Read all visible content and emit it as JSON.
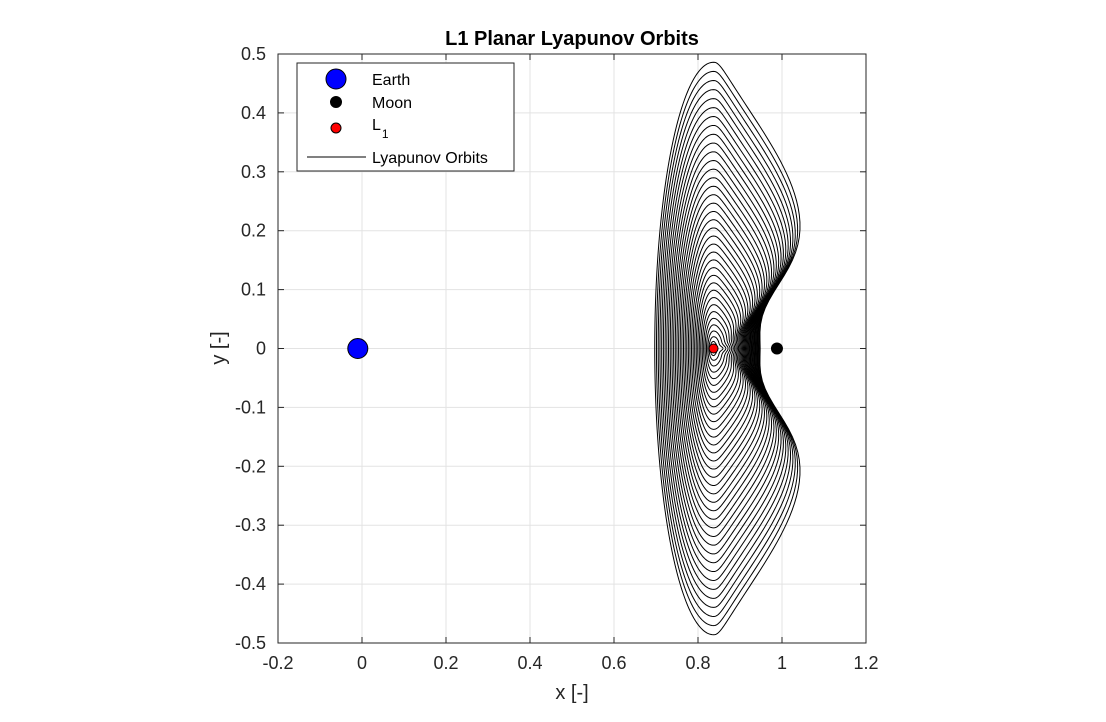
{
  "chart_data": {
    "type": "line",
    "title": "L1 Planar Lyapunov Orbits",
    "xlabel": "x [-]",
    "ylabel": "y [-]",
    "xlim": [
      -0.2,
      1.2
    ],
    "ylim": [
      -0.5,
      0.5
    ],
    "xticks": [
      -0.2,
      0,
      0.2,
      0.4,
      0.6,
      0.8,
      1,
      1.2
    ],
    "xtick_labels": [
      "-0.2",
      "0",
      "0.2",
      "0.4",
      "0.6",
      "0.8",
      "1",
      "1.2"
    ],
    "yticks": [
      -0.5,
      -0.4,
      -0.3,
      -0.2,
      -0.1,
      0,
      0.1,
      0.2,
      0.3,
      0.4,
      0.5
    ],
    "ytick_labels": [
      "-0.5",
      "-0.4",
      "-0.3",
      "-0.2",
      "-0.1",
      "0",
      "0.1",
      "0.2",
      "0.3",
      "0.4",
      "0.5"
    ],
    "grid": true,
    "legend_position": "top-left",
    "legend": [
      {
        "label": "Earth",
        "symbol": "marker",
        "color": "#0000ff",
        "marker_size": "large"
      },
      {
        "label": "Moon",
        "symbol": "marker",
        "color": "#000000",
        "marker_size": "small"
      },
      {
        "label": "L",
        "subscript": "1",
        "symbol": "marker",
        "color": "#ff0000",
        "marker_size": "small"
      },
      {
        "label": "Lyapunov Orbits",
        "symbol": "line",
        "color": "#000000"
      }
    ],
    "points": [
      {
        "name": "Earth",
        "x": -0.01,
        "y": 0,
        "color": "#0000ff"
      },
      {
        "name": "Moon",
        "x": 0.988,
        "y": 0,
        "color": "#000000"
      },
      {
        "name": "L1",
        "x": 0.837,
        "y": 0,
        "color": "#ff0000"
      }
    ],
    "orbits": {
      "count": 36,
      "center_x": 0.837,
      "min_half_height": 0.012,
      "max_half_height": 0.486,
      "min_left_x": 0.829,
      "max_left_x": 0.697,
      "max_right_lobe_x": 1.065,
      "color": "#000000"
    }
  }
}
